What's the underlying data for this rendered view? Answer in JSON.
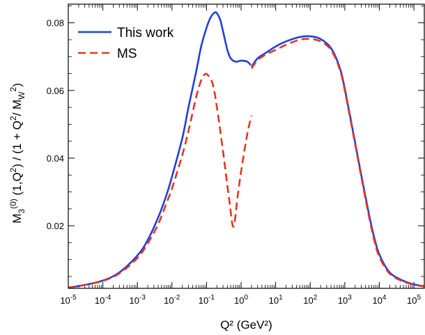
{
  "chart_data": {
    "type": "line",
    "xlabel": "Q² (GeV²)",
    "ylabel": {
      "parts": [
        {
          "t": "M",
          "s": "n"
        },
        {
          "t": "3",
          "s": "sub"
        },
        {
          "t": "(0)",
          "s": "sup"
        },
        {
          "t": " (1,Q",
          "s": "n"
        },
        {
          "t": "2",
          "s": "sup"
        },
        {
          "t": ") / (1 + Q",
          "s": "n"
        },
        {
          "t": "2",
          "s": "sup"
        },
        {
          "t": "/ M",
          "s": "n"
        },
        {
          "t": "W",
          "s": "sub"
        },
        {
          "t": "2",
          "s": "sup"
        },
        {
          "t": ")",
          "s": "n"
        }
      ]
    },
    "x_scale": "log",
    "xlim": [
      1e-05,
      200000.0
    ],
    "ylim": [
      0.0015,
      0.0855
    ],
    "x_ticks": [
      {
        "base": "10",
        "exp": "-5",
        "value": 1e-05
      },
      {
        "base": "10",
        "exp": "-4",
        "value": 0.0001
      },
      {
        "base": "10",
        "exp": "-3",
        "value": 0.001
      },
      {
        "base": "10",
        "exp": "-2",
        "value": 0.01
      },
      {
        "base": "10",
        "exp": "-1",
        "value": 0.1
      },
      {
        "base": "10",
        "exp": "0",
        "value": 1
      },
      {
        "base": "10",
        "exp": "1",
        "value": 10
      },
      {
        "base": "10",
        "exp": "2",
        "value": 100
      },
      {
        "base": "10",
        "exp": "3",
        "value": 1000
      },
      {
        "base": "10",
        "exp": "4",
        "value": 10000
      },
      {
        "base": "10",
        "exp": "5",
        "value": 100000
      }
    ],
    "y_ticks": [
      {
        "label": "0.02",
        "value": 0.02
      },
      {
        "label": "0.04",
        "value": 0.04
      },
      {
        "label": "0.06",
        "value": 0.06
      },
      {
        "label": "0.08",
        "value": 0.08
      }
    ],
    "legend": {
      "position": "top-left"
    },
    "series": [
      {
        "name": "This work",
        "color": "#1f3fe0",
        "dash": "solid",
        "segments": [
          [
            [
              1e-05,
              0.0017
            ],
            [
              3e-05,
              0.0025
            ],
            [
              0.0001,
              0.0038
            ],
            [
              0.0003,
              0.0062
            ],
            [
              0.001,
              0.0112
            ],
            [
              0.002,
              0.0158
            ],
            [
              0.004,
              0.0225
            ],
            [
              0.007,
              0.0292
            ],
            [
              0.01,
              0.0345
            ],
            [
              0.02,
              0.046
            ],
            [
              0.03,
              0.055
            ],
            [
              0.05,
              0.0655
            ],
            [
              0.07,
              0.073
            ],
            [
              0.1,
              0.0785
            ],
            [
              0.13,
              0.0815
            ],
            [
              0.17,
              0.083
            ],
            [
              0.2,
              0.0828
            ],
            [
              0.25,
              0.0808
            ],
            [
              0.3,
              0.0775
            ],
            [
              0.4,
              0.072
            ],
            [
              0.5,
              0.0695
            ],
            [
              0.7,
              0.0685
            ],
            [
              1.0,
              0.0688
            ],
            [
              1.5,
              0.0685
            ],
            [
              1.9,
              0.0675
            ]
          ],
          [
            [
              2.0,
              0.067
            ],
            [
              3,
              0.0695
            ],
            [
              5,
              0.071
            ],
            [
              10,
              0.073
            ],
            [
              20,
              0.0745
            ],
            [
              50,
              0.0758
            ],
            [
              100,
              0.076
            ],
            [
              200,
              0.0752
            ],
            [
              400,
              0.0725
            ],
            [
              700,
              0.067
            ],
            [
              1000,
              0.0605
            ],
            [
              2000,
              0.0445
            ],
            [
              3000,
              0.035
            ],
            [
              5000,
              0.0235
            ],
            [
              7000,
              0.0168
            ],
            [
              10000,
              0.0115
            ],
            [
              20000,
              0.0062
            ],
            [
              50000,
              0.0037
            ],
            [
              100000,
              0.0027
            ],
            [
              200000,
              0.0021
            ]
          ]
        ]
      },
      {
        "name": "MS",
        "color": "#e8341c",
        "dash": "dashed",
        "segments": [
          [
            [
              1e-05,
              0.0017
            ],
            [
              3e-05,
              0.0025
            ],
            [
              0.0001,
              0.0037
            ],
            [
              0.0003,
              0.0059
            ],
            [
              0.001,
              0.0105
            ],
            [
              0.002,
              0.0148
            ],
            [
              0.004,
              0.0205
            ],
            [
              0.007,
              0.0268
            ],
            [
              0.01,
              0.031
            ],
            [
              0.02,
              0.041
            ],
            [
              0.03,
              0.048
            ],
            [
              0.05,
              0.058
            ],
            [
              0.07,
              0.063
            ],
            [
              0.09,
              0.0648
            ],
            [
              0.11,
              0.0645
            ],
            [
              0.15,
              0.062
            ],
            [
              0.2,
              0.055
            ],
            [
              0.3,
              0.042
            ],
            [
              0.45,
              0.028
            ],
            [
              0.6,
              0.0197
            ],
            [
              0.8,
              0.029
            ],
            [
              1.0,
              0.036
            ],
            [
              1.5,
              0.047
            ],
            [
              2.0,
              0.0525
            ]
          ],
          [
            [
              2.0,
              0.0665
            ],
            [
              3,
              0.069
            ],
            [
              5,
              0.0705
            ],
            [
              10,
              0.072
            ],
            [
              20,
              0.0735
            ],
            [
              50,
              0.075
            ],
            [
              100,
              0.0752
            ],
            [
              200,
              0.0745
            ],
            [
              400,
              0.072
            ],
            [
              700,
              0.0665
            ],
            [
              1000,
              0.06
            ],
            [
              2000,
              0.044
            ],
            [
              3000,
              0.0345
            ],
            [
              5000,
              0.0228
            ],
            [
              7000,
              0.016
            ],
            [
              10000,
              0.0108
            ],
            [
              20000,
              0.0058
            ],
            [
              50000,
              0.0035
            ],
            [
              100000,
              0.0026
            ],
            [
              200000,
              0.002
            ]
          ]
        ]
      }
    ]
  }
}
